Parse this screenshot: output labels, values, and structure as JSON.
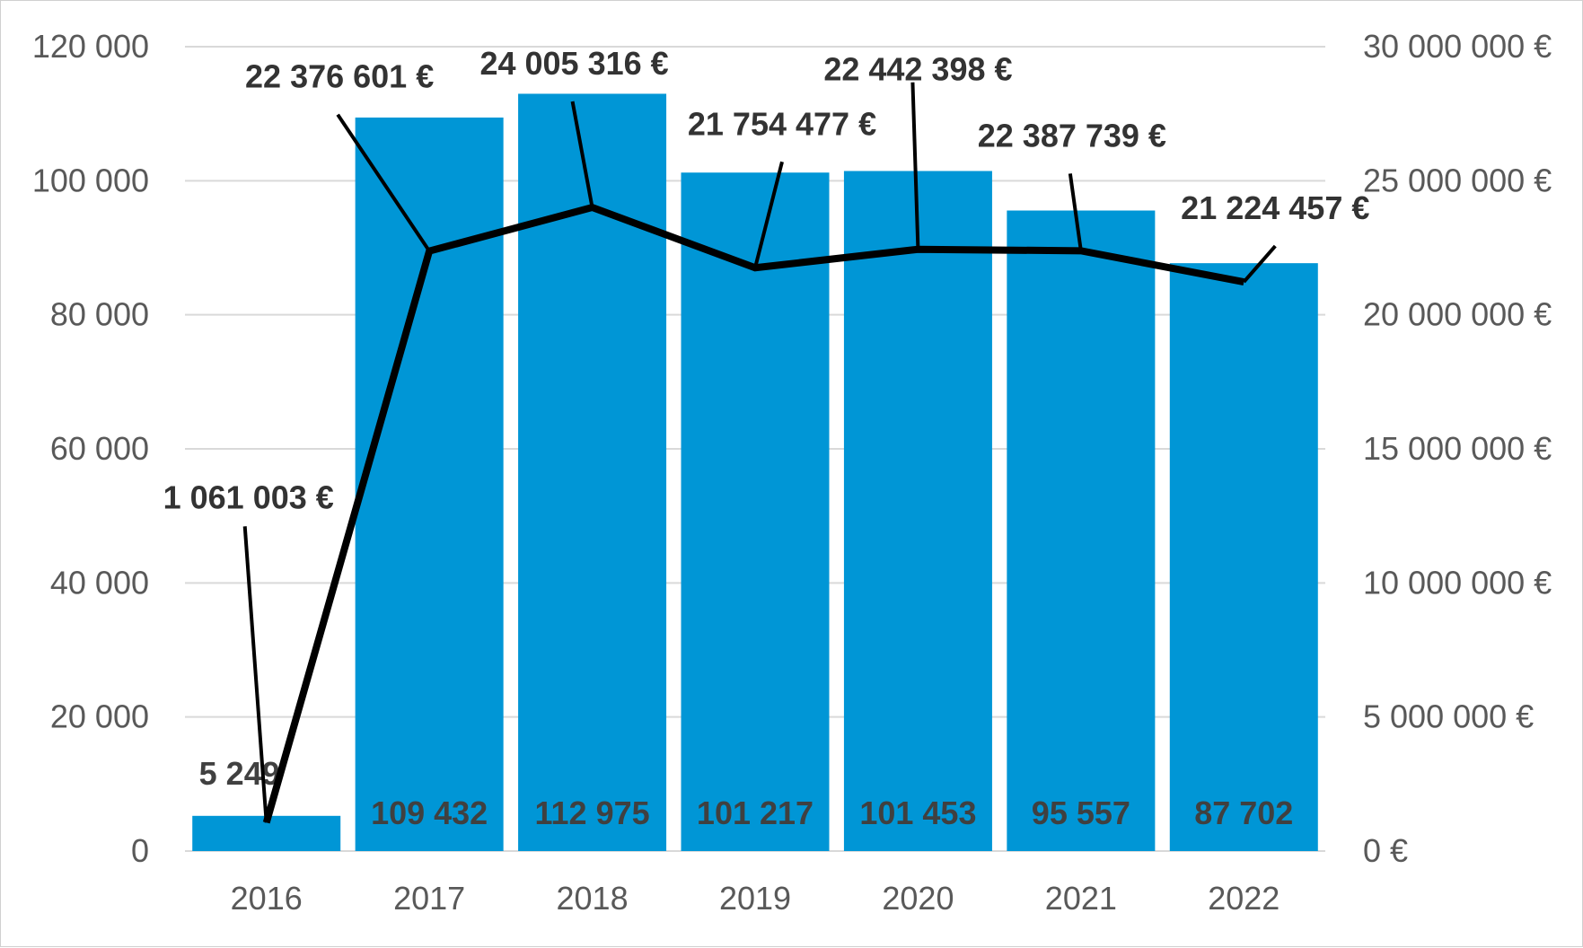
{
  "chart_data": {
    "type": "bar",
    "categories": [
      "2016",
      "2017",
      "2018",
      "2019",
      "2020",
      "2021",
      "2022"
    ],
    "series": [
      {
        "type": "bar",
        "axis": "left",
        "values": [
          5249,
          109432,
          112975,
          101217,
          101453,
          95557,
          87702
        ],
        "labels": [
          "5 249",
          "109 432",
          "112 975",
          "101 217",
          "101 453",
          "95 557",
          "87 702"
        ],
        "color": "#0096d6"
      },
      {
        "type": "line",
        "axis": "right",
        "values": [
          1061003,
          22376601,
          24005316,
          21754477,
          22442398,
          22387739,
          21224457
        ],
        "labels": [
          "1 061 003 €",
          "22 376 601 €",
          "24 005 316 €",
          "21 754 477 €",
          "22 442 398 €",
          "22 387 739 €",
          "21 224 457 €"
        ],
        "color": "#000000"
      }
    ],
    "y_left": {
      "range": [
        0,
        120000
      ],
      "ticks": [
        0,
        20000,
        40000,
        60000,
        80000,
        100000,
        120000
      ],
      "tick_labels": [
        "0",
        "20 000",
        "40 000",
        "60 000",
        "80 000",
        "100 000",
        "120 000"
      ]
    },
    "y_right": {
      "range": [
        0,
        30000000
      ],
      "ticks": [
        0,
        5000000,
        10000000,
        15000000,
        20000000,
        25000000,
        30000000
      ],
      "tick_labels": [
        "0 €",
        "5 000 000 €",
        "10 000 000 €",
        "15 000 000 €",
        "20 000 000 €",
        "25 000 000 €",
        "30 000 000 €"
      ]
    },
    "grid": true,
    "legend": "none",
    "title": "",
    "xlabel": "",
    "ylabel": ""
  }
}
